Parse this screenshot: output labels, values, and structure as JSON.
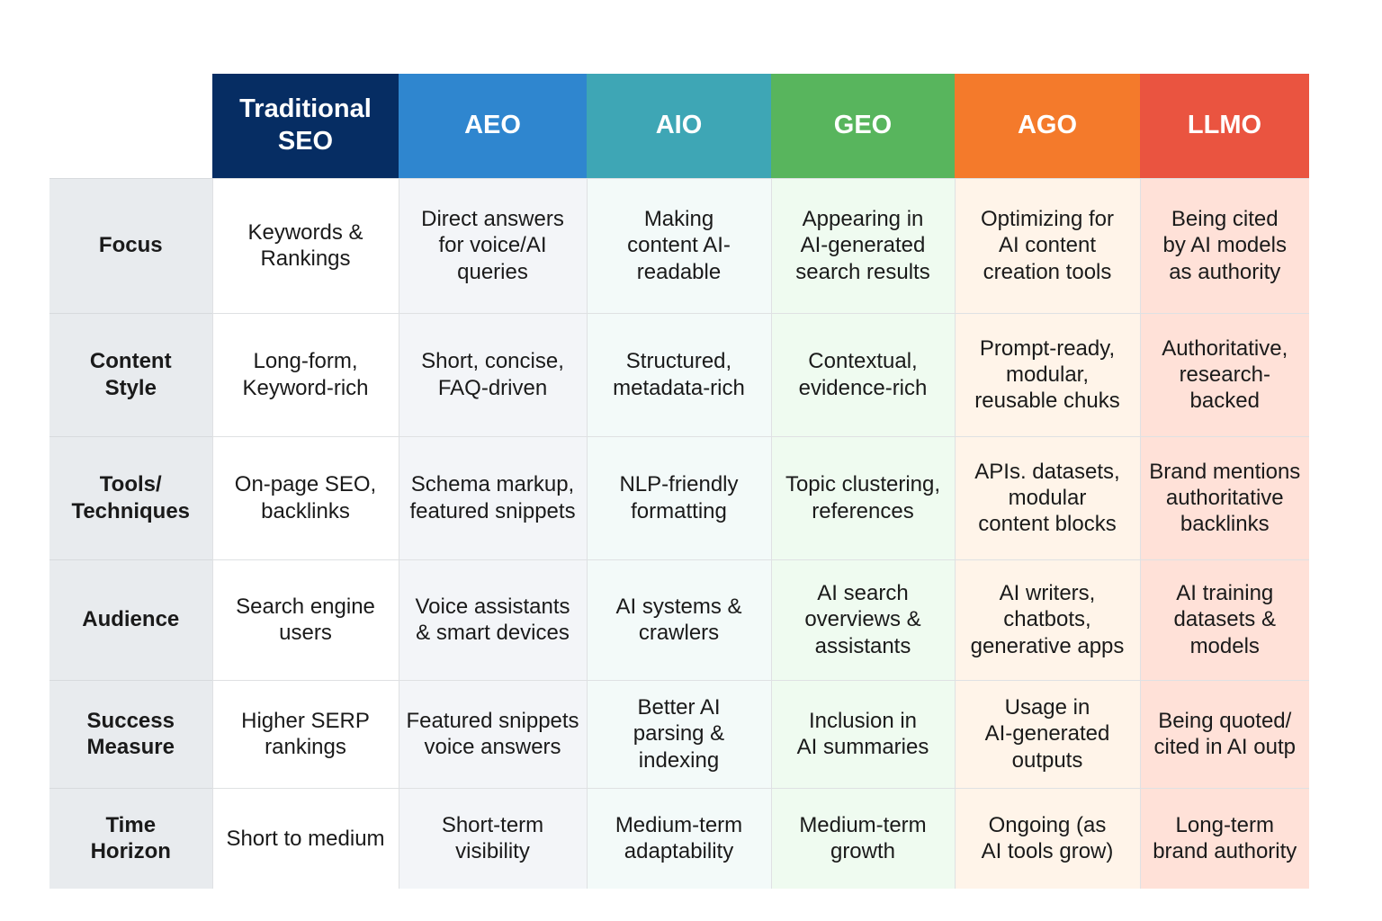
{
  "columns": [
    {
      "label": "Traditional\nSEO",
      "header_color": "#062d63",
      "cell_bg": "#ffffff"
    },
    {
      "label": "AEO",
      "header_color": "#2f86cf",
      "cell_bg": "#f3f5f8"
    },
    {
      "label": "AIO",
      "header_color": "#3ea6b5",
      "cell_bg": "#f3faf9"
    },
    {
      "label": "GEO",
      "header_color": "#58b55d",
      "cell_bg": "#effbf0"
    },
    {
      "label": "AGO",
      "header_color": "#f47a2b",
      "cell_bg": "#fff4e9"
    },
    {
      "label": "LLMO",
      "header_color": "#ea5440",
      "cell_bg": "#ffe1d8"
    }
  ],
  "rows": [
    {
      "label": "Focus",
      "cells": [
        "Keywords &\nRankings",
        "Direct answers\nfor voice/AI\nqueries",
        "Making\ncontent AI-\nreadable",
        "Appearing in\nAI-generated\nsearch results",
        "Optimizing for\nAI content\ncreation tools",
        "Being cited\nby AI models\nas authority"
      ]
    },
    {
      "label": "Content\nStyle",
      "cells": [
        "Long-form,\nKeyword-rich",
        "Short, concise,\nFAQ-driven",
        "Structured,\nmetadata-rich",
        "Contextual,\nevidence-rich",
        "Prompt-ready,\nmodular,\nreusable chuks",
        "Authoritative,\nresearch-\nbacked"
      ]
    },
    {
      "label": "Tools/\nTechniques",
      "cells": [
        "On-page SEO,\nbacklinks",
        "Schema markup,\nfeatured snippets",
        "NLP-friendly\nformatting",
        "Topic clustering,\nreferences",
        "APIs. datasets,\nmodular\ncontent blocks",
        "Brand mentions\nauthoritative\nbacklinks"
      ]
    },
    {
      "label": "Audience",
      "cells": [
        "Search engine\nusers",
        "Voice assistants\n& smart devices",
        "AI systems &\ncrawlers",
        "AI search\noverviews &\nassistants",
        "AI writers,\nchatbots,\ngenerative apps",
        "AI training\ndatasets &\nmodels"
      ]
    },
    {
      "label": "Success\nMeasure",
      "cells": [
        "Higher SERP\nrankings",
        "Featured snippets\nvoice answers",
        "Better AI\nparsing &\nindexing",
        "Inclusion in\nAI summaries",
        "Usage in\nAI-generated\noutputs",
        "Being quoted/\ncited in AI outp"
      ]
    },
    {
      "label": "Time\nHorizon",
      "cells": [
        "Short to medium",
        "Short-term\nvisibility",
        "Medium-term\nadaptability",
        "Medium-term\ngrowth",
        "Ongoing (as\nAI tools grow)",
        "Long-term\nbrand authority"
      ]
    }
  ]
}
